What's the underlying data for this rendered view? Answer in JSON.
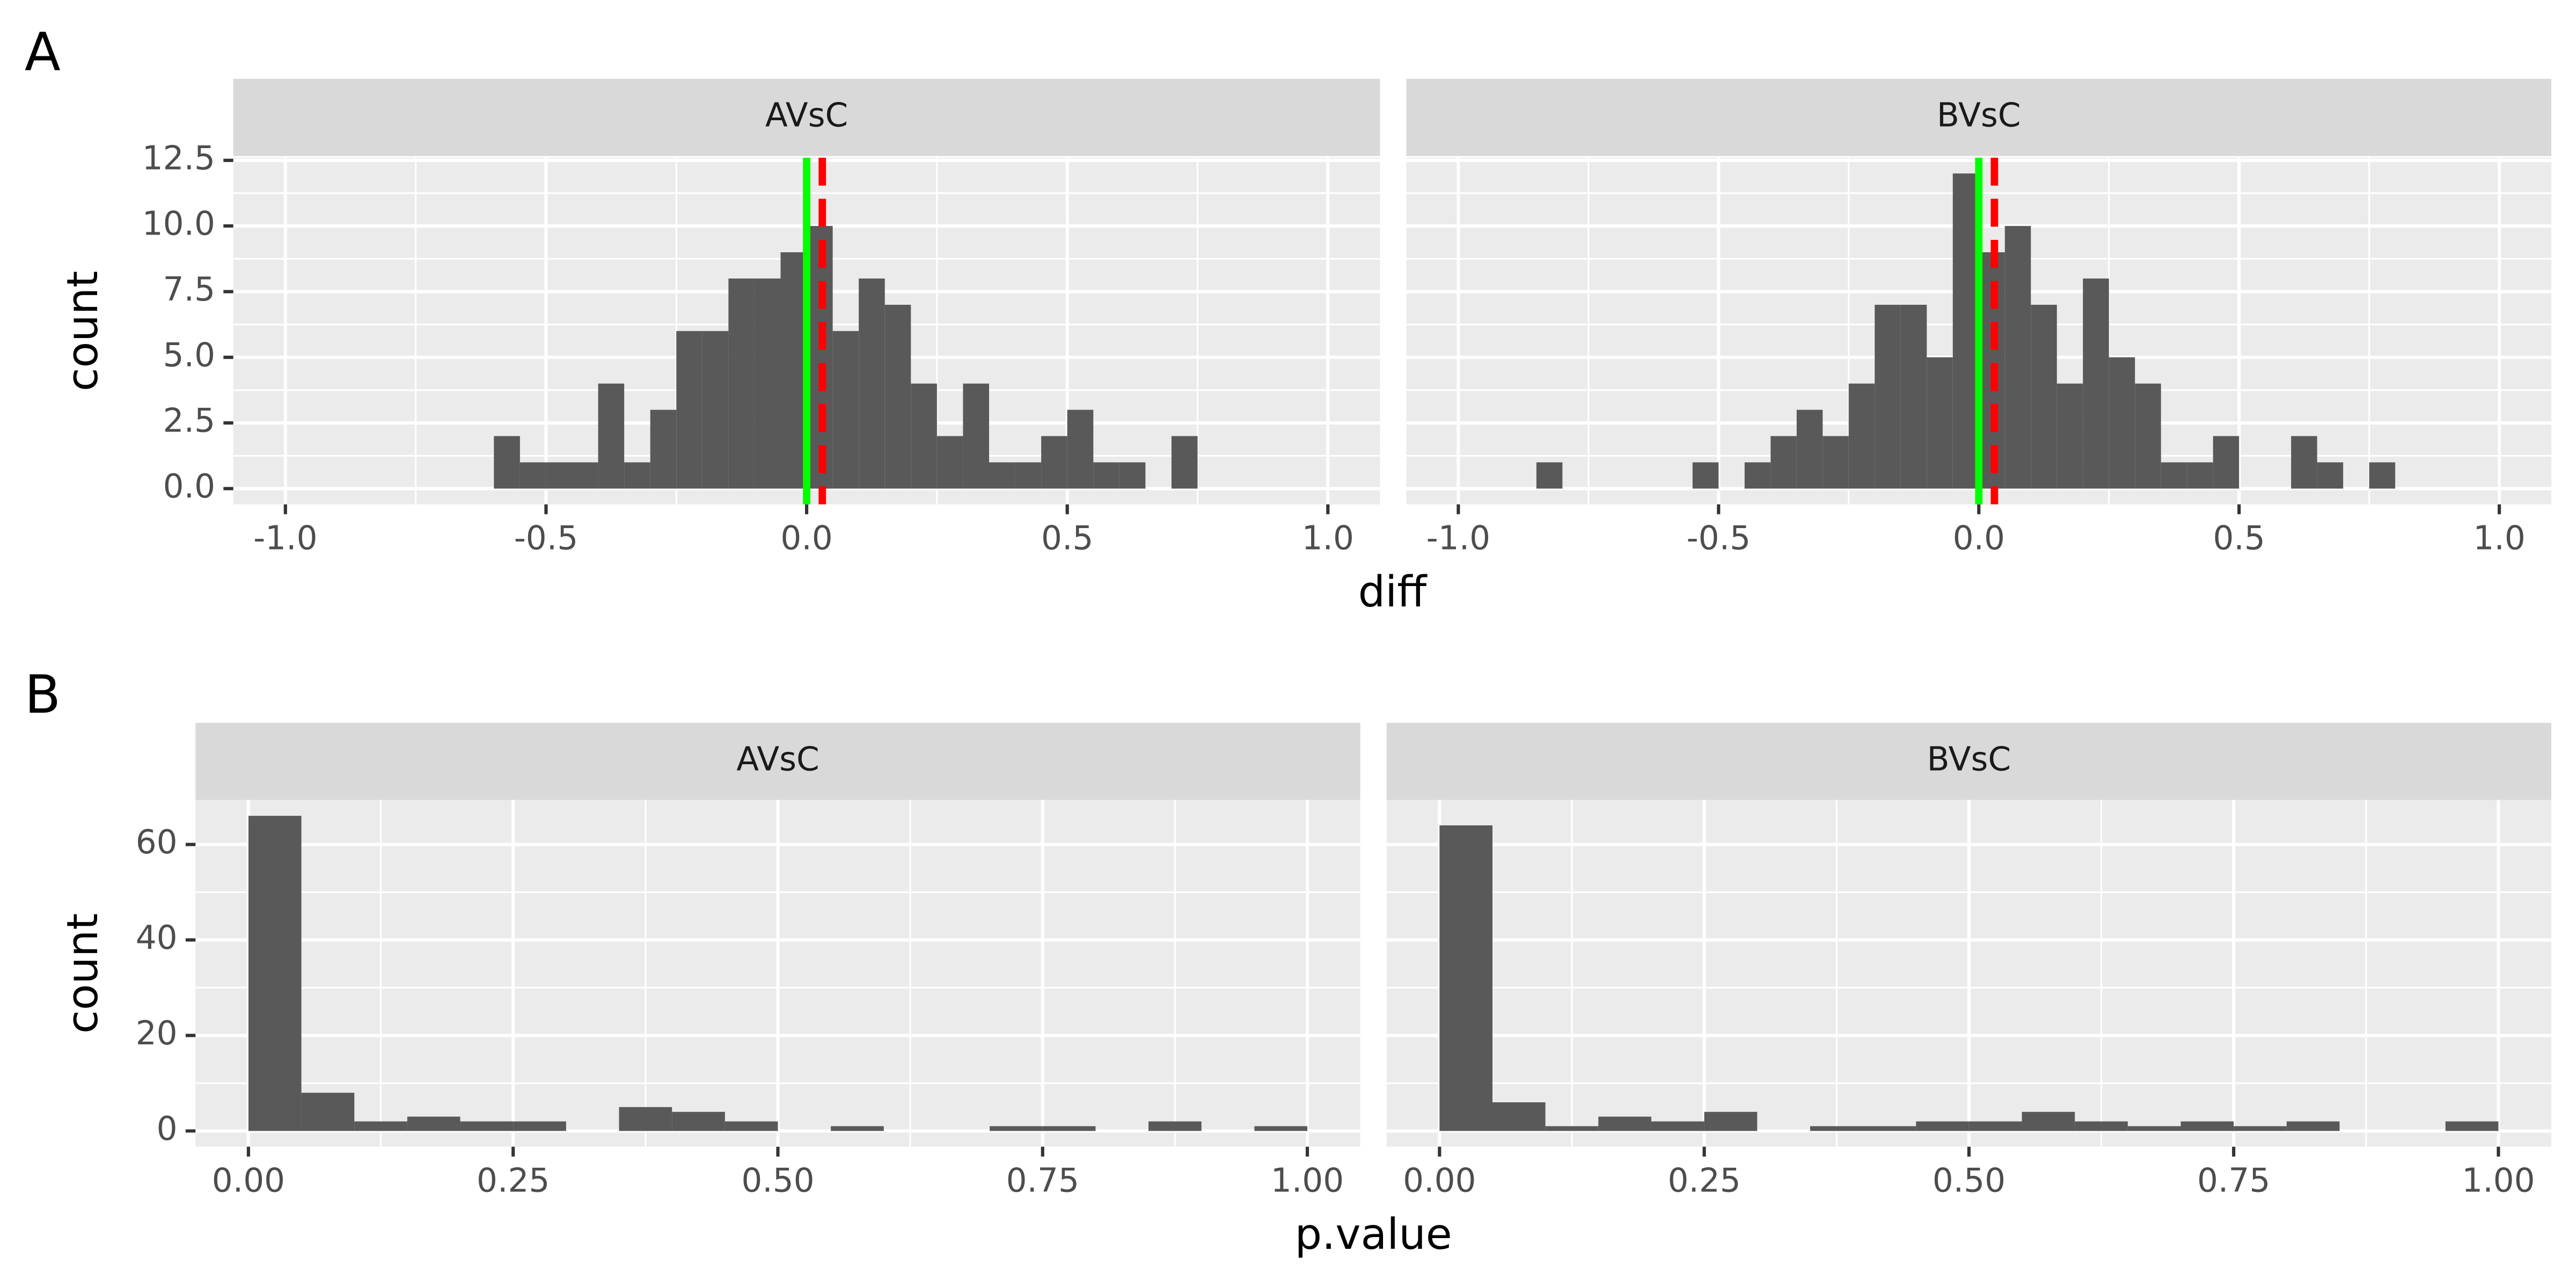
{
  "chart_data": [
    {
      "type": "histogram",
      "tag": "A",
      "xlabel": "diff",
      "ylabel": "count",
      "xlim": [
        -1.1,
        1.1
      ],
      "ylim": [
        -0.6,
        12.6
      ],
      "xticks": [
        {
          "value": -1,
          "label": "-1.0"
        },
        -0.5,
        {
          "value": 0,
          "label": "0.0"
        },
        0.5,
        {
          "value": 1,
          "label": "1.0"
        }
      ],
      "yticks": [
        {
          "value": 0,
          "label": "0.0"
        },
        2.5,
        {
          "value": 5,
          "label": "5.0"
        },
        7.5,
        {
          "value": 10,
          "label": "10.0"
        },
        12.5
      ],
      "grid": true,
      "minor_grid": true,
      "color": "#595959",
      "vlines": [
        {
          "value": 0,
          "color": "#00ff00",
          "linetype": "solid"
        },
        {
          "value": 0.03,
          "color": "#ff0000",
          "linetype": "dashed"
        }
      ],
      "facets": [
        {
          "title": "AVsC",
          "bins": [
            -0.6,
            -0.55,
            -0.5,
            -0.45,
            -0.4,
            -0.35,
            -0.3,
            -0.25,
            -0.2,
            -0.15,
            -0.1,
            -0.05,
            0,
            0.05,
            0.1,
            0.15,
            0.2,
            0.25,
            0.3,
            0.35,
            0.4,
            0.45,
            0.5,
            0.55,
            0.6,
            0.65,
            0.7,
            0.75
          ],
          "counts": [
            2,
            1,
            1,
            1,
            4,
            1,
            3,
            6,
            6,
            8,
            8,
            9,
            10,
            6,
            8,
            7,
            4,
            2,
            4,
            1,
            1,
            2,
            3,
            1,
            1,
            0,
            2
          ]
        },
        {
          "title": "BVsC",
          "bins": [
            -0.85,
            -0.8,
            -0.75,
            -0.7,
            -0.65,
            -0.6,
            -0.55,
            -0.5,
            -0.45,
            -0.4,
            -0.35,
            -0.3,
            -0.25,
            -0.2,
            -0.15,
            -0.1,
            -0.05,
            0,
            0.05,
            0.1,
            0.15,
            0.2,
            0.25,
            0.3,
            0.35,
            0.4,
            0.45,
            0.5,
            0.55,
            0.6,
            0.65,
            0.7,
            0.75,
            0.8
          ],
          "counts": [
            1,
            0,
            0,
            0,
            0,
            0,
            1,
            0,
            1,
            2,
            3,
            2,
            4,
            7,
            7,
            5,
            12,
            9,
            10,
            7,
            4,
            8,
            5,
            4,
            1,
            1,
            2,
            0,
            0,
            2,
            1,
            0,
            1
          ]
        }
      ]
    },
    {
      "type": "histogram",
      "tag": "B",
      "xlabel": "p.value",
      "ylabel": "count",
      "xlim": [
        -0.05,
        1.05
      ],
      "ylim": [
        -3.3,
        69.3
      ],
      "xticks": [
        {
          "value": 0,
          "label": "0.00"
        },
        {
          "value": 0.25,
          "label": "0.25"
        },
        {
          "value": 0.5,
          "label": "0.50"
        },
        {
          "value": 0.75,
          "label": "0.75"
        },
        {
          "value": 1,
          "label": "1.00"
        }
      ],
      "yticks": [
        0,
        20,
        40,
        60
      ],
      "grid": true,
      "minor_grid": true,
      "color": "#595959",
      "facets": [
        {
          "title": "AVsC",
          "bins": [
            0,
            0.05,
            0.1,
            0.15,
            0.2,
            0.25,
            0.3,
            0.35,
            0.4,
            0.45,
            0.5,
            0.55,
            0.6,
            0.65,
            0.7,
            0.75,
            0.8,
            0.85,
            0.9,
            0.95,
            1
          ],
          "counts": [
            66,
            8,
            2,
            3,
            2,
            2,
            0,
            5,
            4,
            2,
            0,
            1,
            0,
            0,
            1,
            1,
            0,
            2,
            0,
            1
          ]
        },
        {
          "title": "BVsC",
          "bins": [
            0,
            0.05,
            0.1,
            0.15,
            0.2,
            0.25,
            0.3,
            0.35,
            0.4,
            0.45,
            0.5,
            0.55,
            0.6,
            0.65,
            0.7,
            0.75,
            0.8,
            0.85,
            0.9,
            0.95,
            1
          ],
          "counts": [
            64,
            6,
            1,
            3,
            2,
            4,
            0,
            1,
            1,
            2,
            2,
            4,
            2,
            1,
            2,
            1,
            2,
            0,
            0,
            2
          ]
        }
      ]
    }
  ]
}
